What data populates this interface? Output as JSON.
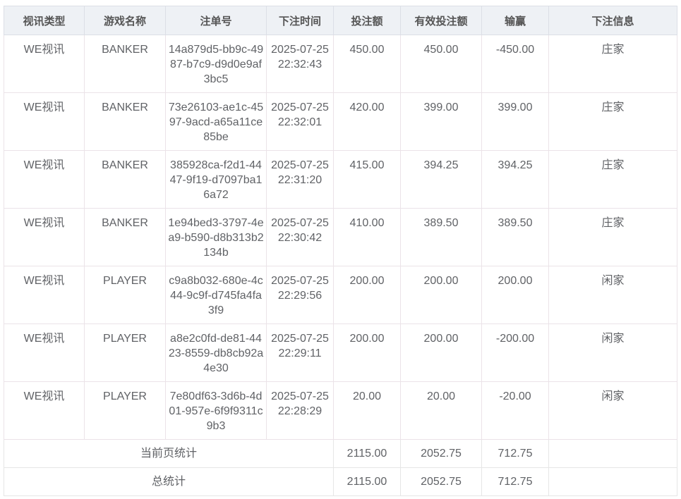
{
  "headers": [
    "视讯类型",
    "游戏名称",
    "注单号",
    "下注时间",
    "投注额",
    "有效投注额",
    "输赢",
    "下注信息"
  ],
  "rows": [
    {
      "type": "WE视讯",
      "game": "BANKER",
      "id": "14a879d5-bb9c-4987-b7c9-d9d0e9af3bc5",
      "date": "2025-07-25",
      "time": "22:32:43",
      "bet": "450.00",
      "valid": "450.00",
      "win": "-450.00",
      "info": "庄家"
    },
    {
      "type": "WE视讯",
      "game": "BANKER",
      "id": "73e26103-ae1c-4597-9acd-a65a11ce85be",
      "date": "2025-07-25",
      "time": "22:32:01",
      "bet": "420.00",
      "valid": "399.00",
      "win": "399.00",
      "info": "庄家"
    },
    {
      "type": "WE视讯",
      "game": "BANKER",
      "id": "385928ca-f2d1-4447-9f19-d7097ba16a72",
      "date": "2025-07-25",
      "time": "22:31:20",
      "bet": "415.00",
      "valid": "394.25",
      "win": "394.25",
      "info": "庄家"
    },
    {
      "type": "WE视讯",
      "game": "BANKER",
      "id": "1e94bed3-3797-4ea9-b590-d8b313b2134b",
      "date": "2025-07-25",
      "time": "22:30:42",
      "bet": "410.00",
      "valid": "389.50",
      "win": "389.50",
      "info": "庄家"
    },
    {
      "type": "WE视讯",
      "game": "PLAYER",
      "id": "c9a8b032-680e-4c44-9c9f-d745fa4fa3f9",
      "date": "2025-07-25",
      "time": "22:29:56",
      "bet": "200.00",
      "valid": "200.00",
      "win": "200.00",
      "info": "闲家"
    },
    {
      "type": "WE视讯",
      "game": "PLAYER",
      "id": "a8e2c0fd-de81-4423-8559-db8cb92a4e30",
      "date": "2025-07-25",
      "time": "22:29:11",
      "bet": "200.00",
      "valid": "200.00",
      "win": "-200.00",
      "info": "闲家"
    },
    {
      "type": "WE视讯",
      "game": "PLAYER",
      "id": "7e80df63-3d6b-4d01-957e-6f9f9311c9b3",
      "date": "2025-07-25",
      "time": "22:28:29",
      "bet": "20.00",
      "valid": "20.00",
      "win": "-20.00",
      "info": "闲家"
    }
  ],
  "summary": [
    {
      "label": "当前页统计",
      "bet": "2115.00",
      "valid": "2052.75",
      "win": "712.75"
    },
    {
      "label": "总统计",
      "bet": "2115.00",
      "valid": "2052.75",
      "win": "712.75"
    }
  ]
}
